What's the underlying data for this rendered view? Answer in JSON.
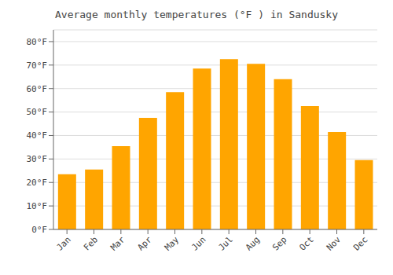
{
  "chart_data": {
    "type": "bar",
    "title": "Average monthly temperatures (°F ) in Sandusky",
    "categories": [
      "Jan",
      "Feb",
      "Mar",
      "Apr",
      "May",
      "Jun",
      "Jul",
      "Aug",
      "Sep",
      "Oct",
      "Nov",
      "Dec"
    ],
    "values": [
      23.5,
      25.5,
      35.5,
      47.5,
      58.5,
      68.5,
      72.5,
      70.5,
      64.0,
      52.5,
      41.5,
      29.5
    ],
    "color": "#FFA500",
    "ylim": [
      0,
      85
    ],
    "yticks": [
      {
        "value": 0,
        "label": "0°F"
      },
      {
        "value": 10,
        "label": "10°F"
      },
      {
        "value": 20,
        "label": "20°F"
      },
      {
        "value": 30,
        "label": "30°F"
      },
      {
        "value": 40,
        "label": "40°F"
      },
      {
        "value": 50,
        "label": "50°F"
      },
      {
        "value": 60,
        "label": "60°F"
      },
      {
        "value": 70,
        "label": "70°F"
      },
      {
        "value": 80,
        "label": "80°F"
      }
    ],
    "grid": true
  }
}
